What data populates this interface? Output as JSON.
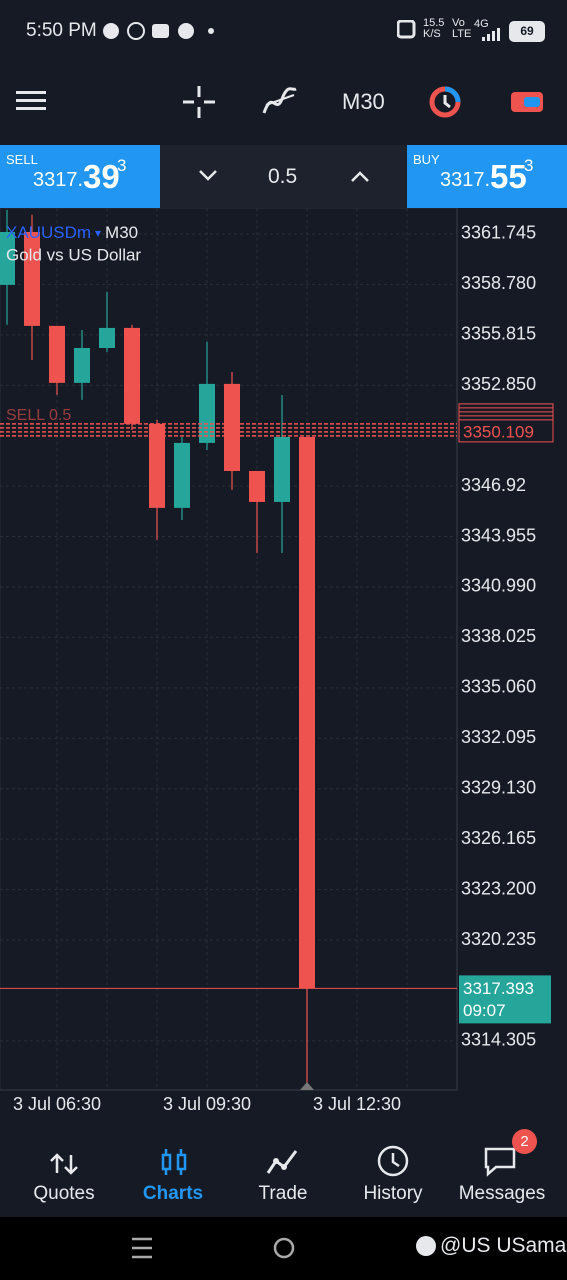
{
  "status_bar": {
    "time": "5:50 PM",
    "speed": "15.5",
    "speed_unit": "K/S",
    "network": "Vo",
    "network_sub": "LTE",
    "signal": "4G",
    "battery": "69"
  },
  "toolbar": {
    "timeframe": "M30"
  },
  "trade_bar": {
    "sell": {
      "label": "SELL",
      "price": "3317.",
      "price_big": "39",
      "price_sup": "3"
    },
    "volume": "0.5",
    "buy": {
      "label": "BUY",
      "price": "3317.",
      "price_big": "55",
      "price_sup": "3"
    }
  },
  "chart_data": {
    "type": "candlestick",
    "symbol": "XAUUSDm",
    "timeframe": "M30",
    "description": "Gold vs US Dollar",
    "x": [
      330,
      360,
      390,
      420,
      450,
      480,
      510,
      540,
      570,
      600,
      630,
      660,
      690
    ],
    "open": [
      3358.75,
      3361.86,
      3356.34,
      3352.99,
      3355.04,
      3356.22,
      3350.58,
      3345.64,
      3349.46,
      3352.93,
      3347.81,
      3345.99,
      3349.81
    ],
    "high": [
      3363.16,
      3362.87,
      3356.34,
      3356.1,
      3358.34,
      3356.4,
      3350.81,
      3349.81,
      3355.4,
      3353.63,
      3347.81,
      3352.28,
      3349.81
    ],
    "low": [
      3356.4,
      3354.34,
      3352.28,
      3351.99,
      3354.81,
      3350.22,
      3343.76,
      3344.93,
      3349.05,
      3346.7,
      3342.99,
      3342.99,
      3311.72
    ],
    "close": [
      3361.86,
      3356.34,
      3352.99,
      3355.04,
      3356.22,
      3350.58,
      3345.64,
      3349.46,
      3352.93,
      3347.81,
      3345.99,
      3349.81,
      3317.393
    ],
    "up_color": "#26a69a",
    "down_color": "#ef5350",
    "xlim": [
      321.6,
      870
    ],
    "ylim": [
      3311.42,
      3363.27
    ],
    "xticks": [
      {
        "value": 390,
        "label": "3 Jul 06:30"
      },
      {
        "value": 570,
        "label": "3 Jul 09:30"
      },
      {
        "value": 750,
        "label": "3 Jul 12:30"
      }
    ],
    "xgrid": [
      390,
      450,
      510,
      570,
      630,
      690,
      750,
      810
    ],
    "yticks": [
      3361.745,
      {
        "value": 3358.78,
        "label": "3358.780"
      },
      3355.815,
      {
        "value": 3352.85,
        "label": "3352.850"
      },
      3346.92,
      3343.955,
      {
        "value": 3340.99,
        "label": "3340.990"
      },
      3338.025,
      {
        "value": 3335.06,
        "label": "3335.060"
      },
      3332.095,
      {
        "value": 3329.13,
        "label": "3329.130"
      },
      3326.165,
      {
        "value": 3323.2,
        "label": "3323.200"
      },
      3320.235,
      3314.305
    ],
    "grid": true,
    "order": {
      "label": "SELL 0.5",
      "price": 3350.109
    },
    "current_price": {
      "value": 3317.393,
      "time": "09:07"
    }
  },
  "nav": {
    "items": [
      "Quotes",
      "Charts",
      "Trade",
      "History",
      "Messages"
    ],
    "active": 1,
    "badge": "2"
  },
  "watermark": "@US USama"
}
